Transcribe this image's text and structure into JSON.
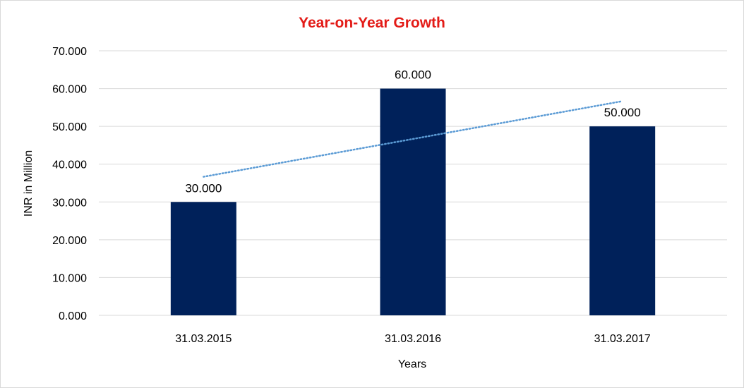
{
  "colors": {
    "title": "#e31b17",
    "bar": "#00215a",
    "trendline": "#5b9bd5",
    "grid": "#d9d9d9"
  },
  "chart_data": {
    "type": "bar",
    "title": "Year-on-Year Growth",
    "xlabel": "Years",
    "ylabel": "INR in Million",
    "categories": [
      "31.03.2015",
      "31.03.2016",
      "31.03.2017"
    ],
    "values": [
      30,
      60,
      50
    ],
    "value_labels": [
      "30.000",
      "60.000",
      "50.000"
    ],
    "ylim": [
      0,
      70
    ],
    "y_ticks": [
      0,
      10,
      20,
      30,
      40,
      50,
      60,
      70
    ],
    "y_tick_labels": [
      "0.000",
      "10.000",
      "20.000",
      "30.000",
      "40.000",
      "50.000",
      "60.000",
      "70.000"
    ],
    "grid": true,
    "trendline": {
      "type": "linear",
      "style": "dotted"
    }
  }
}
